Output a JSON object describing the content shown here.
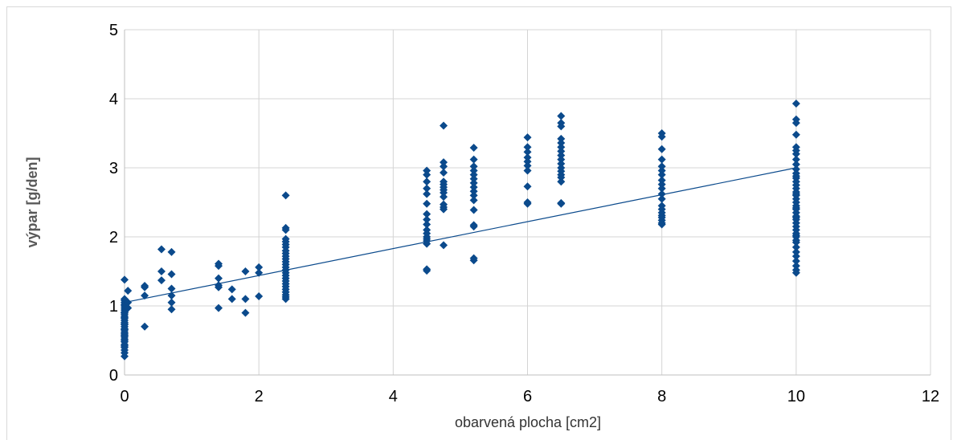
{
  "chart_data": {
    "type": "scatter",
    "title": "",
    "xlabel": "obarvená plocha [cm2]",
    "ylabel": "výpar [g/den]",
    "xlim": [
      0,
      12
    ],
    "ylim": [
      0,
      5
    ],
    "xticks": [
      "0",
      "2",
      "4",
      "6",
      "8",
      "10",
      "12"
    ],
    "yticks": [
      "0",
      "1",
      "2",
      "3",
      "4",
      "5"
    ],
    "grid": true,
    "legend": "none",
    "marker": "diamond",
    "color": "#0b4a8c",
    "trendline": {
      "type": "linear",
      "x": [
        0,
        10
      ],
      "y": [
        1.05,
        3.0
      ]
    },
    "series": [
      {
        "x": [
          0,
          0,
          0,
          0,
          0,
          0,
          0,
          0,
          0,
          0,
          0,
          0,
          0,
          0,
          0,
          0,
          0,
          0,
          0,
          0,
          0,
          0,
          0,
          0,
          0,
          0,
          0,
          0,
          0,
          0,
          0,
          0,
          0,
          0,
          0,
          0,
          0.05,
          0.05,
          0.05,
          0.3,
          0.3,
          0.3,
          0.3,
          0.55,
          0.55,
          0.55,
          0.7,
          0.7,
          0.7,
          0.7,
          0.7,
          0.7,
          1.4,
          1.4,
          1.4,
          1.4,
          1.4,
          1.4,
          1.6,
          1.6,
          1.8,
          1.8,
          1.8,
          2.0,
          2.0,
          2.0,
          2.4,
          2.4,
          2.4,
          2.4,
          2.4,
          2.4,
          2.4,
          2.4,
          2.4,
          2.4,
          2.4,
          2.4,
          2.4,
          2.4,
          2.4,
          2.4,
          2.4,
          2.4,
          2.4,
          2.4,
          2.4,
          2.4,
          2.4,
          2.4,
          2.4,
          2.4,
          4.5,
          4.5,
          4.5,
          4.5,
          4.5,
          4.5,
          4.5,
          4.5,
          4.5,
          4.5,
          4.5,
          4.5,
          4.5,
          4.5,
          4.5,
          4.5,
          4.5,
          4.75,
          4.75,
          4.75,
          4.75,
          4.75,
          4.75,
          4.75,
          4.75,
          4.75,
          4.75,
          4.75,
          4.75,
          4.75,
          4.75,
          5.2,
          5.2,
          5.2,
          5.2,
          5.2,
          5.2,
          5.2,
          5.2,
          5.2,
          5.2,
          5.2,
          5.2,
          5.2,
          5.2,
          5.2,
          5.2,
          6.0,
          6.0,
          6.0,
          6.0,
          6.0,
          6.0,
          6.0,
          6.0,
          6.0,
          6.0,
          6.5,
          6.5,
          6.5,
          6.5,
          6.5,
          6.5,
          6.5,
          6.5,
          6.5,
          6.5,
          6.5,
          6.5,
          6.5,
          6.5,
          6.5,
          6.5,
          6.5,
          8.0,
          8.0,
          8.0,
          8.0,
          8.0,
          8.0,
          8.0,
          8.0,
          8.0,
          8.0,
          8.0,
          8.0,
          8.0,
          8.0,
          8.0,
          8.0,
          8.0,
          8.0,
          8.0,
          8.0,
          10,
          10,
          10,
          10,
          10,
          10,
          10,
          10,
          10,
          10,
          10,
          10,
          10,
          10,
          10,
          10,
          10,
          10,
          10,
          10,
          10,
          10,
          10,
          10,
          10,
          10,
          10,
          10,
          10,
          10,
          10,
          10,
          10,
          10,
          10,
          10,
          10,
          10,
          10,
          10,
          10,
          10,
          10
        ],
        "y": [
          0.27,
          0.32,
          0.36,
          0.4,
          0.44,
          0.48,
          0.52,
          0.55,
          0.58,
          0.6,
          0.62,
          0.65,
          0.67,
          0.7,
          0.73,
          0.76,
          0.79,
          0.82,
          0.85,
          0.88,
          0.91,
          0.94,
          0.97,
          1.0,
          1.02,
          1.05,
          1.08,
          1.1,
          0.42,
          0.5,
          0.57,
          0.66,
          0.74,
          0.83,
          0.9,
          1.38,
          1.22,
          1.05,
          0.97,
          1.29,
          1.27,
          1.15,
          0.7,
          1.82,
          1.5,
          1.37,
          1.78,
          1.46,
          1.25,
          1.15,
          1.05,
          0.95,
          1.61,
          1.58,
          1.4,
          1.3,
          1.27,
          0.97,
          1.24,
          1.1,
          1.5,
          1.1,
          0.9,
          1.56,
          1.48,
          1.14,
          2.6,
          2.13,
          2.1,
          1.97,
          1.93,
          1.89,
          1.85,
          1.8,
          1.76,
          1.72,
          1.68,
          1.64,
          1.6,
          1.56,
          1.52,
          1.48,
          1.44,
          1.4,
          1.36,
          1.32,
          1.28,
          1.24,
          1.2,
          1.16,
          1.13,
          1.1,
          2.96,
          2.9,
          2.8,
          2.7,
          2.62,
          2.48,
          2.33,
          2.25,
          2.18,
          2.1,
          2.05,
          2.0,
          1.97,
          1.94,
          1.9,
          1.53,
          1.51,
          3.61,
          3.08,
          3.02,
          2.93,
          2.8,
          2.76,
          2.72,
          2.68,
          2.64,
          2.58,
          2.47,
          2.43,
          2.4,
          1.88,
          3.29,
          3.12,
          3.02,
          2.96,
          2.9,
          2.84,
          2.78,
          2.72,
          2.66,
          2.6,
          2.53,
          2.39,
          2.17,
          2.15,
          1.69,
          1.66,
          3.44,
          3.3,
          3.23,
          3.15,
          3.09,
          3.03,
          2.96,
          2.73,
          2.5,
          2.48,
          3.75,
          3.65,
          3.6,
          3.42,
          3.36,
          3.3,
          3.24,
          3.18,
          3.12,
          3.06,
          3.0,
          2.95,
          2.9,
          2.86,
          2.8,
          2.49,
          2.48,
          3.5,
          3.45,
          3.27,
          3.12,
          3.02,
          2.96,
          2.9,
          2.82,
          2.76,
          2.7,
          2.62,
          2.55,
          2.45,
          2.4,
          2.35,
          2.31,
          2.28,
          2.24,
          2.2,
          2.18,
          3.93,
          3.7,
          3.65,
          3.48,
          3.3,
          3.25,
          3.2,
          3.12,
          3.05,
          2.98,
          2.92,
          2.85,
          2.8,
          2.75,
          2.7,
          2.65,
          2.6,
          2.55,
          2.5,
          2.45,
          2.4,
          2.35,
          2.3,
          2.25,
          2.2,
          2.15,
          2.1,
          2.05,
          2.0,
          1.95,
          1.92,
          1.85,
          1.78,
          1.72,
          1.65,
          1.58,
          1.52,
          1.48,
          2.88,
          2.62,
          2.42,
          2.28,
          2.02
        ]
      }
    ]
  }
}
